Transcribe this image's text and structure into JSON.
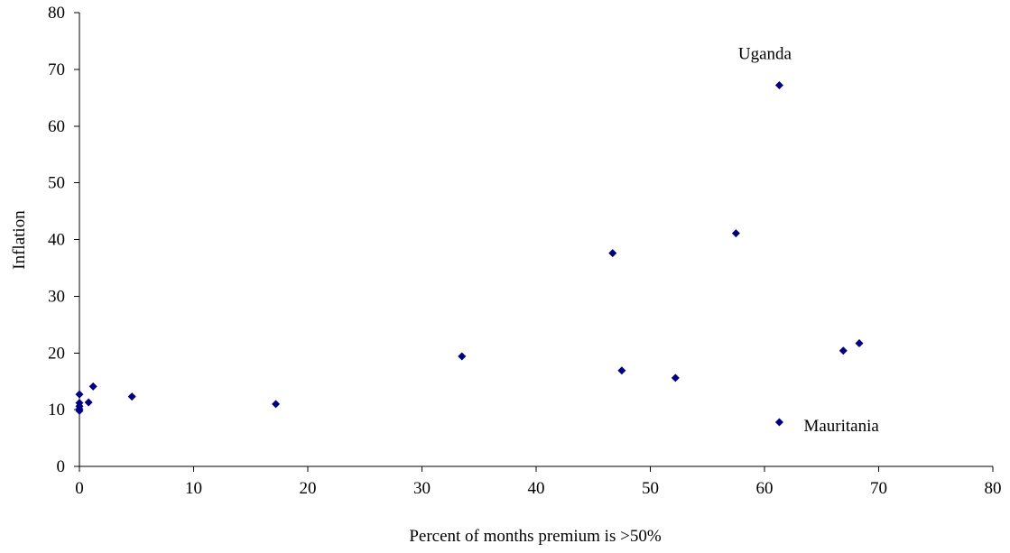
{
  "chart_data": {
    "type": "scatter",
    "title": "",
    "xlabel": "Percent of months premium is >50%",
    "ylabel": "Inflation",
    "xlim": [
      0,
      80
    ],
    "ylim": [
      0,
      80
    ],
    "xticks": [
      0,
      10,
      20,
      30,
      40,
      50,
      60,
      70,
      80
    ],
    "yticks": [
      0,
      10,
      20,
      30,
      40,
      50,
      60,
      70,
      80
    ],
    "grid": false,
    "legend": "none",
    "marker": "diamond",
    "color": "#000080",
    "points": [
      {
        "x": 0,
        "y": 12.7
      },
      {
        "x": 0,
        "y": 11.2
      },
      {
        "x": 0,
        "y": 10.6
      },
      {
        "x": 0,
        "y": 10.1
      },
      {
        "x": 0,
        "y": 9.8
      },
      {
        "x": 0.8,
        "y": 11.3
      },
      {
        "x": 1.2,
        "y": 14.1
      },
      {
        "x": 4.6,
        "y": 12.3
      },
      {
        "x": 17.2,
        "y": 11.0
      },
      {
        "x": 33.5,
        "y": 19.4
      },
      {
        "x": 46.7,
        "y": 37.6
      },
      {
        "x": 47.5,
        "y": 16.9
      },
      {
        "x": 52.2,
        "y": 15.6
      },
      {
        "x": 57.5,
        "y": 41.1
      },
      {
        "x": 61.3,
        "y": 67.2
      },
      {
        "x": 61.3,
        "y": 7.8
      },
      {
        "x": 66.9,
        "y": 20.4
      },
      {
        "x": 68.3,
        "y": 21.7
      }
    ],
    "annotations": [
      {
        "text": "Uganda",
        "x": 61.3,
        "y": 67.2,
        "position": "above"
      },
      {
        "text": "Mauritania",
        "x": 61.3,
        "y": 7.8,
        "position": "right"
      }
    ]
  }
}
